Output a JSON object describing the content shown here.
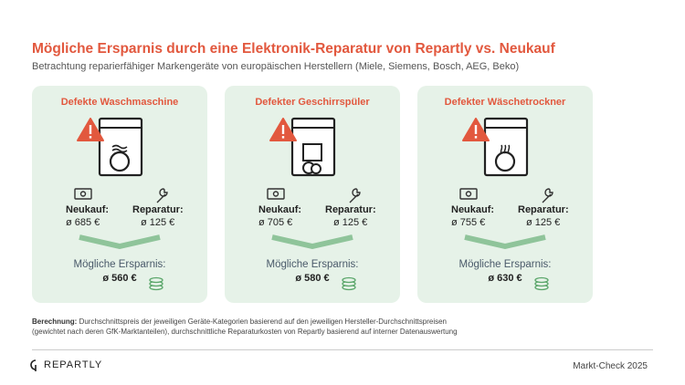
{
  "header": {
    "title": "Mögliche Ersparnis durch eine Elektronik-Reparatur von Repartly vs. Neukauf",
    "subtitle": "Betrachtung reparierfähiger Markengeräte von europäischen Herstellern (Miele, Siemens, Bosch, AEG, Beko)"
  },
  "cards": [
    {
      "title": "Defekte Waschmaschine",
      "new_label": "Neukauf:",
      "new_value": "ø 685 €",
      "repair_label": "Reparatur:",
      "repair_value": "ø 125 €",
      "savings_label": "Mögliche Ersparnis:",
      "savings_value": "ø 560 €"
    },
    {
      "title": "Defekter Geschirrspüler",
      "new_label": "Neukauf:",
      "new_value": "ø 705 €",
      "repair_label": "Reparatur:",
      "repair_value": "ø 125 €",
      "savings_label": "Mögliche Ersparnis:",
      "savings_value": "ø 580 €"
    },
    {
      "title": "Defekter Wäschetrockner",
      "new_label": "Neukauf:",
      "new_value": "ø 755 €",
      "repair_label": "Reparatur:",
      "repair_value": "ø 125 €",
      "savings_label": "Mögliche Ersparnis:",
      "savings_value": "ø 630 €"
    }
  ],
  "footnote": {
    "label": "Berechnung:",
    "lines": [
      "Durchschnittspreis der jeweiligen Geräte-Kategorien basierend auf den jeweiligen Hersteller-Durchschnittspreisen",
      "(gewichtet nach deren GfK-Marktanteilen), durchschnittliche Reparaturkosten von Repartly basierend auf interner Datenauswertung"
    ]
  },
  "footer": {
    "brand": "REPARTLY",
    "note": "Markt-Check 2025"
  }
}
